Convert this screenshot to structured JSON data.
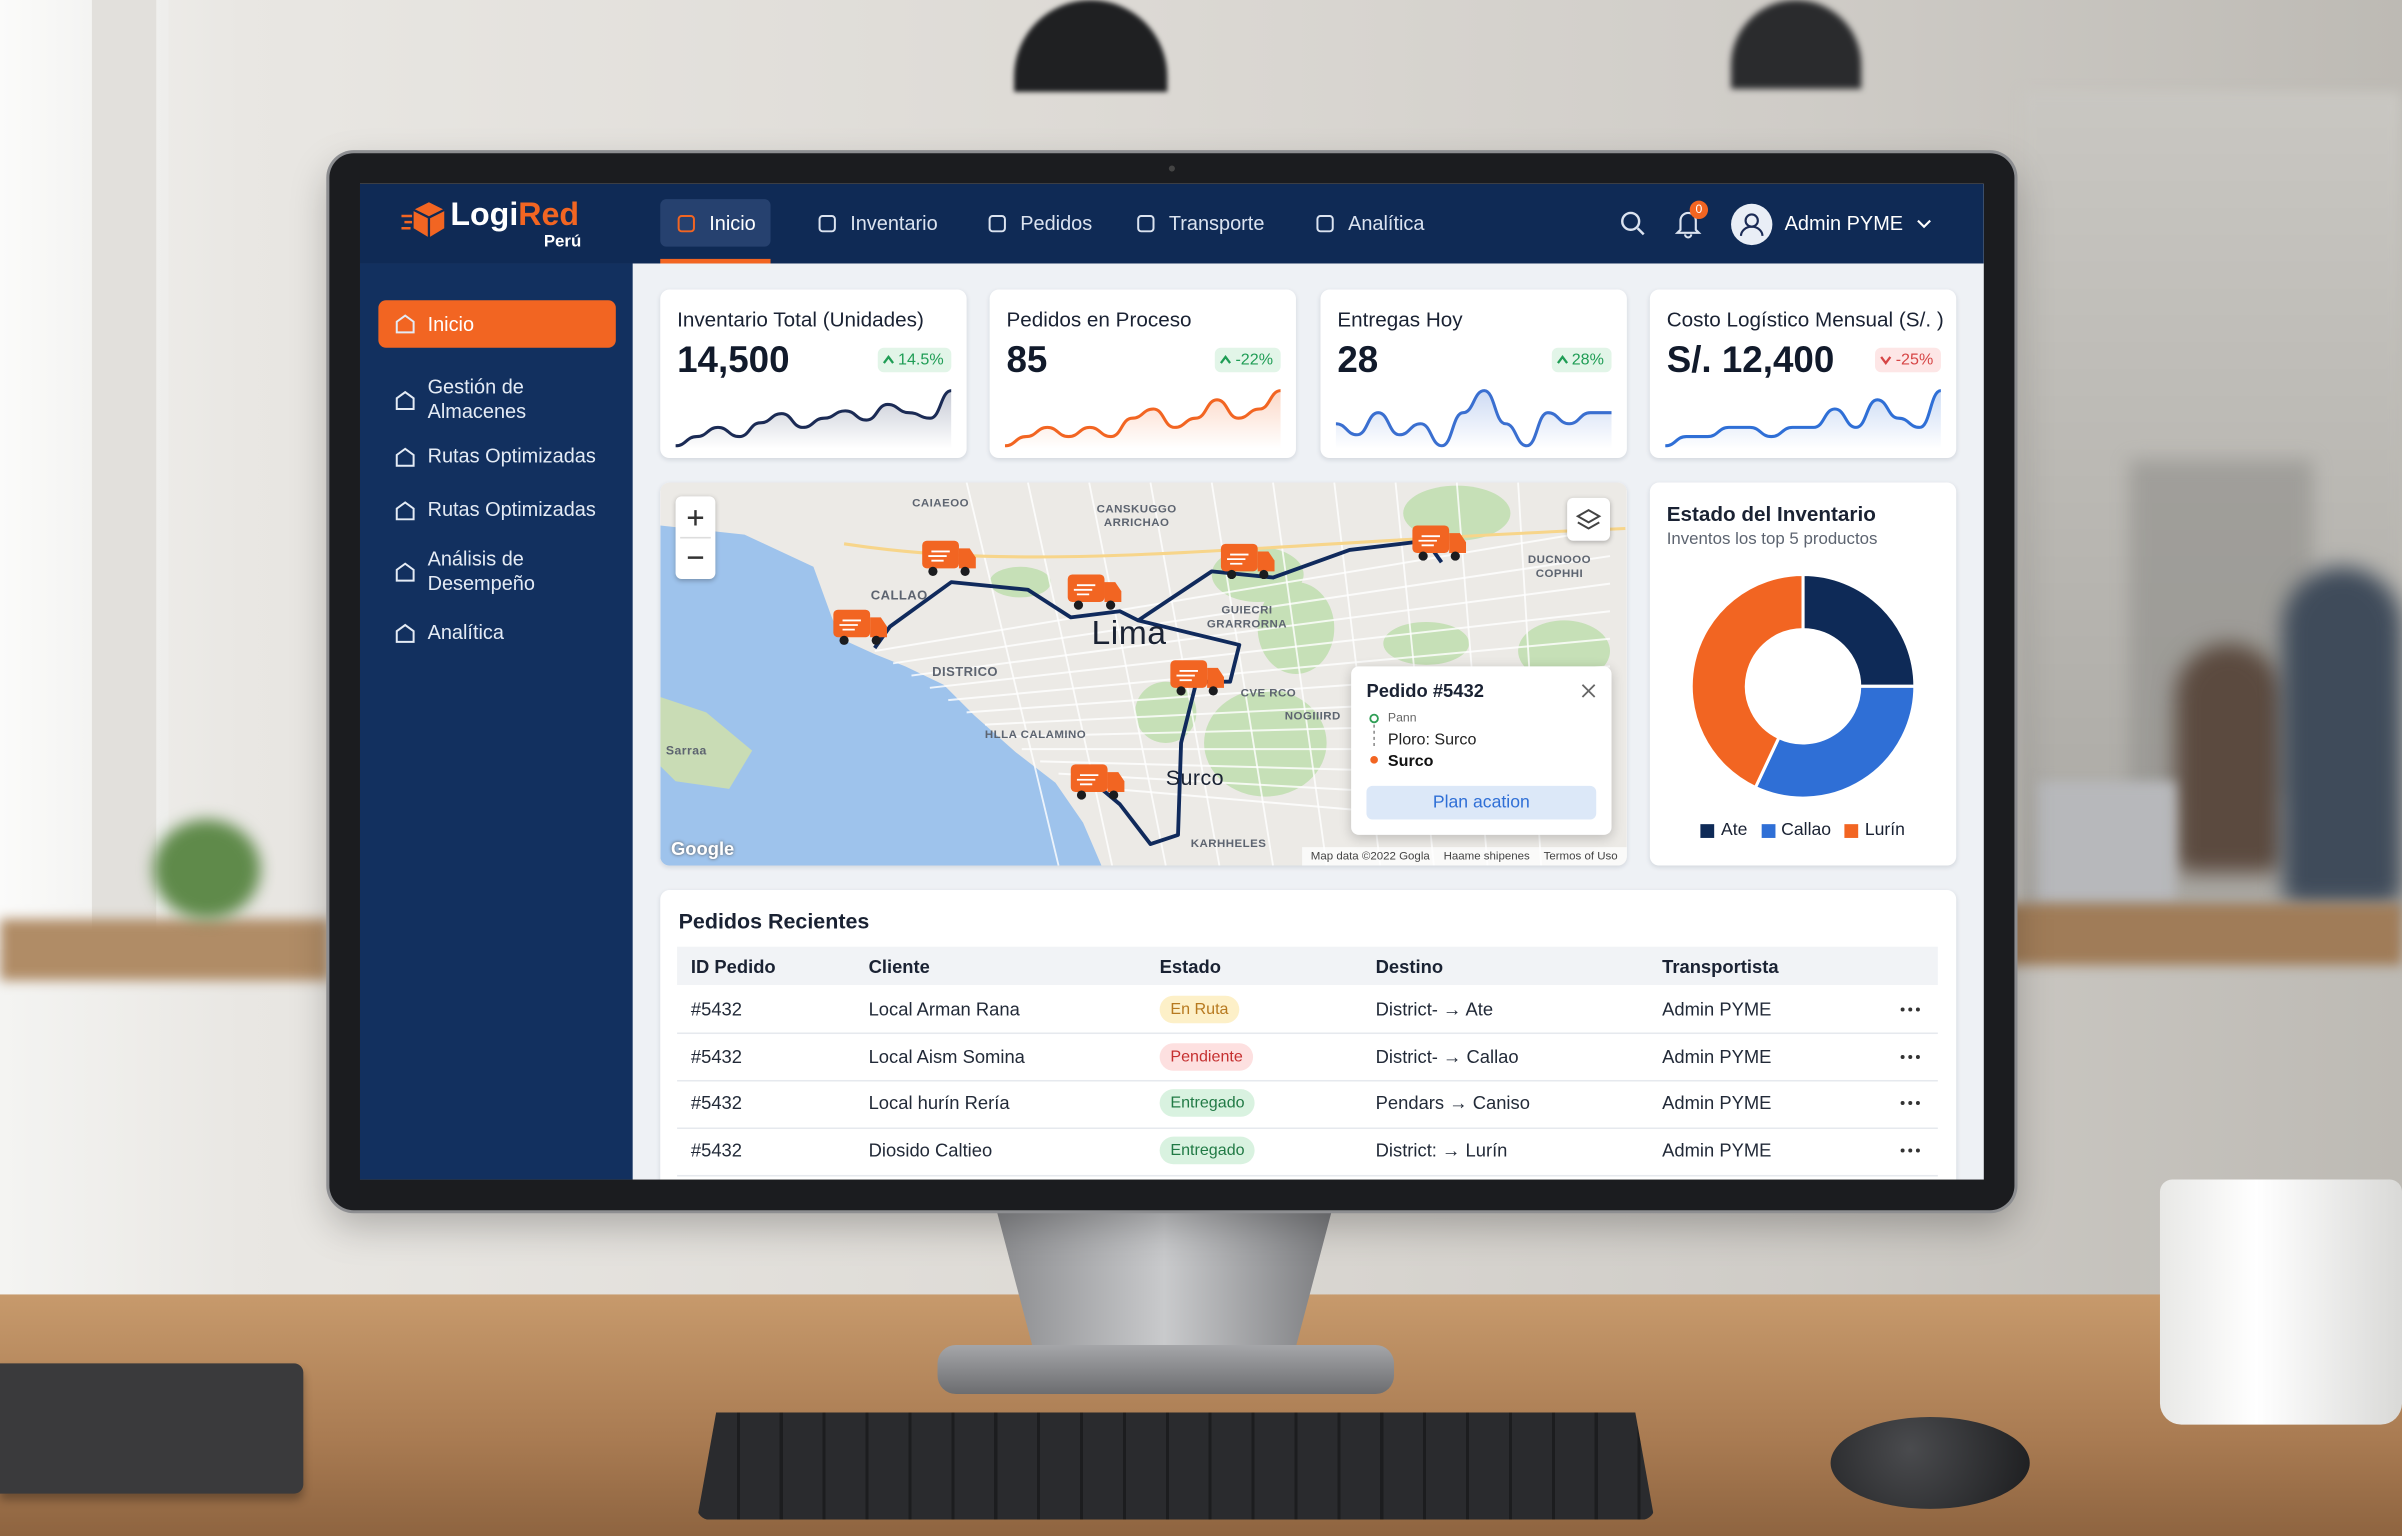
{
  "brand": {
    "logo_main": "Logi",
    "logo_accent": "Red",
    "logo_sub": "Perú"
  },
  "nav": [
    {
      "label": "Inicio",
      "active": true
    },
    {
      "label": "Inventario",
      "active": false
    },
    {
      "label": "Pedidos",
      "active": false
    },
    {
      "label": "Transporte",
      "active": false
    },
    {
      "label": "Analítica",
      "active": false
    }
  ],
  "notification_count": "0",
  "user_name": "Admin PYME",
  "sidebar": [
    {
      "label": "Inicio",
      "active": true
    },
    {
      "label": "Gestión de Almacenes",
      "active": false
    },
    {
      "label": "Rutas Optimizadas",
      "active": false
    },
    {
      "label": "Rutas Optimizadas",
      "active": false
    },
    {
      "label": "Análisis de Desempeño",
      "active": false
    },
    {
      "label": "Analítica",
      "active": false
    }
  ],
  "kpis": [
    {
      "title": "Inventario Total (Unidades)",
      "value": "14,500",
      "change": "14.5%",
      "direction": "up",
      "change_color": "#1f9d55",
      "change_bg": "#e2f5e8",
      "line_color": "#1b2b55",
      "trend": [
        2,
        3,
        4,
        3,
        4.5,
        5.5,
        4,
        5,
        5.8,
        4.8,
        6.5,
        5.6,
        5,
        8
      ]
    },
    {
      "title": "Pedidos en Proceso",
      "value": "85",
      "change": "-22%",
      "direction": "up",
      "change_color": "#1f9d55",
      "change_bg": "#e2f5e8",
      "line_color": "#f26522",
      "trend": [
        1,
        2,
        3,
        2,
        3,
        2,
        4,
        5,
        3,
        4,
        6,
        4,
        5,
        7
      ]
    },
    {
      "title": "Entregas Hoy",
      "value": "28",
      "change": "28%",
      "direction": "up",
      "change_color": "#1f9d55",
      "change_bg": "#e2f5e8",
      "line_color": "#3a6fd0",
      "trend": [
        5,
        4,
        6,
        4,
        5,
        3,
        6,
        8,
        5,
        3,
        6,
        5,
        6,
        6
      ]
    },
    {
      "title": "Costo Logístico Mensual (S/. )",
      "value": "S/. 12,400",
      "change": "-25%",
      "direction": "down",
      "change_color": "#d64545",
      "change_bg": "#fde6e6",
      "line_color": "#2f6fd6",
      "trend": [
        2,
        3,
        3,
        4,
        4,
        3,
        4,
        4,
        6,
        4,
        7,
        5,
        4,
        8
      ]
    }
  ],
  "map": {
    "labels": [
      "CAIAEOO",
      "CANSKUGGO ARRICHAO",
      "CALLAO",
      "Lima",
      "GUIECRI GRARRORNA",
      "DISTRICO",
      "CVE RCO",
      "NOGIIIRD",
      "HLLA CALAMINO",
      "Surco",
      "Sarraa",
      "KARHHELES",
      "DUCNOOO COPHHI"
    ],
    "attribution": "Google",
    "map_data": "Map data ©2022 Gogla",
    "links": [
      "Haame shipenes",
      "Termos of Uso"
    ],
    "popup": {
      "title": "Pedido #5432",
      "origin": "Pann",
      "stop": "Ploro: Surco",
      "destination": "Surco",
      "button": "Plan acation"
    }
  },
  "inventory": {
    "title": "Estado del Inventario",
    "subtitle": "Inventos los top 5 productos",
    "segments": [
      {
        "name": "Ate",
        "value": 25,
        "color": "#0e2a57"
      },
      {
        "name": "Callao",
        "value": 32,
        "color": "#2f6fd6"
      },
      {
        "name": "Lurín",
        "value": 43,
        "color": "#f26522"
      }
    ]
  },
  "orders": {
    "title": "Pedidos Recientes",
    "columns": [
      "ID Pedido",
      "Cliente",
      "Estado",
      "Destino",
      "Transportista"
    ],
    "rows": [
      {
        "id": "#5432",
        "client": "Local Arman Rana",
        "status": "En Ruta",
        "status_style": "warning",
        "destination": "District- → Ate",
        "carrier": "Admin PYME"
      },
      {
        "id": "#5432",
        "client": "Local Aism Somina",
        "status": "Pendiente",
        "status_style": "danger",
        "destination": "District- → Callao",
        "carrier": "Admin PYME"
      },
      {
        "id": "#5432",
        "client": "Local hurín Rería",
        "status": "Entregado",
        "status_style": "success",
        "destination": "Pendars → Caniso",
        "carrier": "Admin PYME"
      },
      {
        "id": "#5432",
        "client": "Diosido Caltieo",
        "status": "Entregado",
        "status_style": "success",
        "destination": "District: → Lurín",
        "carrier": "Admin PYME"
      }
    ]
  }
}
